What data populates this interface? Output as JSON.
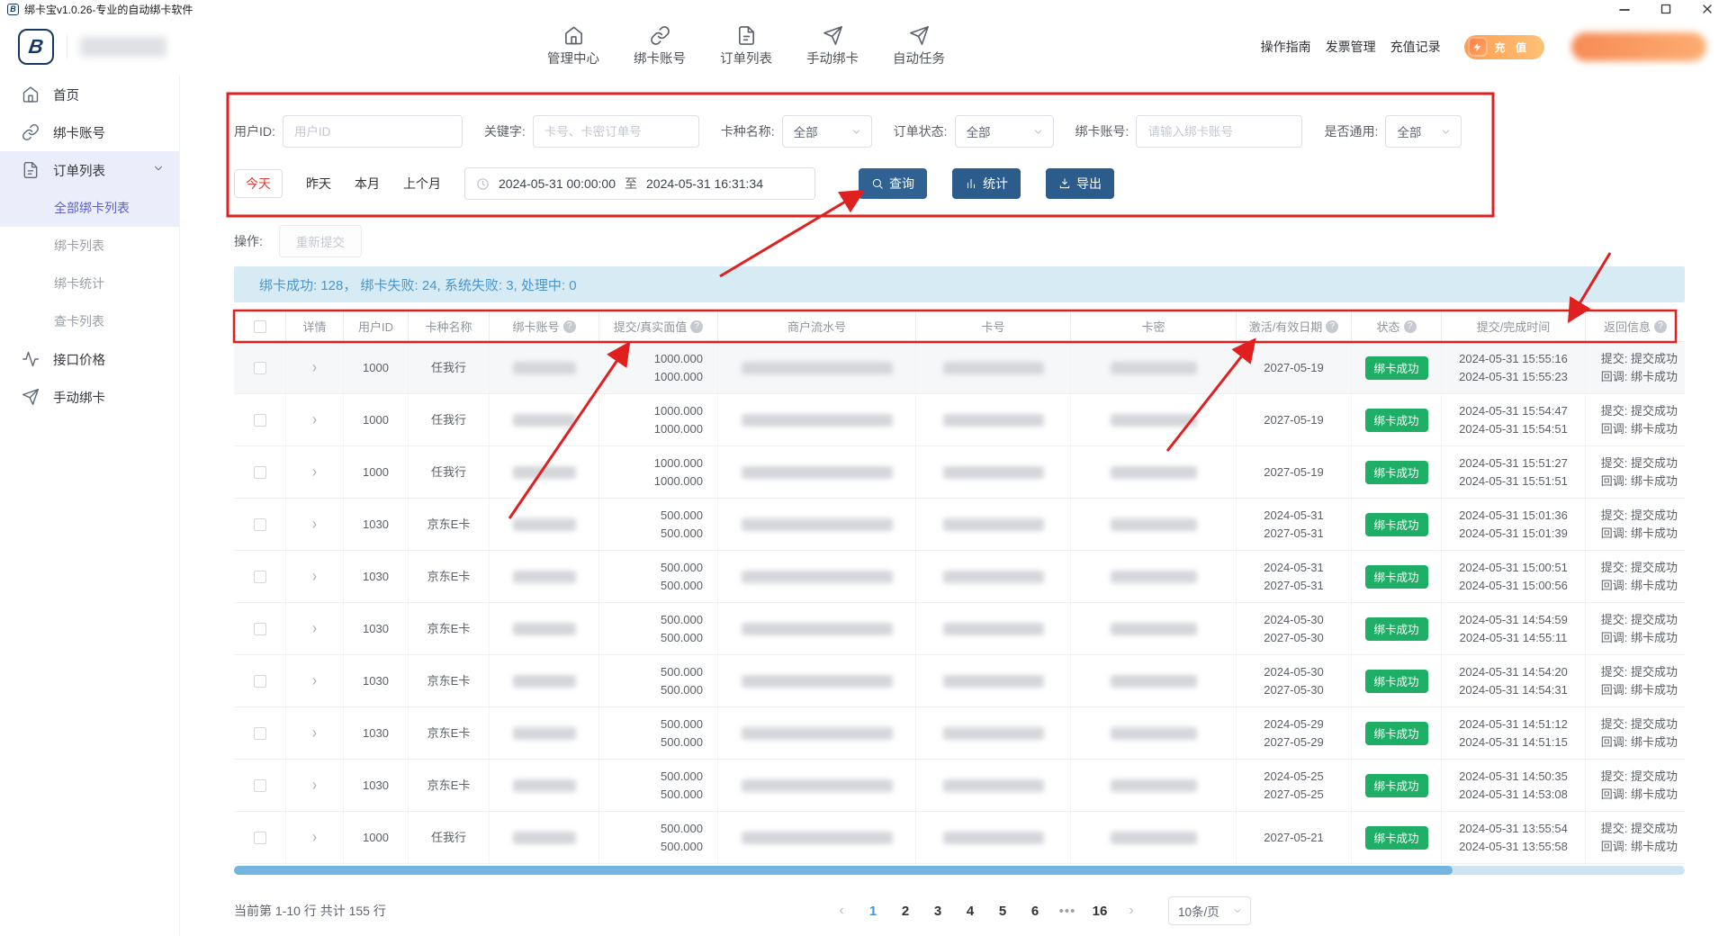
{
  "window": {
    "title": "绑卡宝v1.0.26-专业的自动绑卡软件"
  },
  "header": {
    "nav": [
      {
        "label": "管理中心"
      },
      {
        "label": "绑卡账号"
      },
      {
        "label": "订单列表"
      },
      {
        "label": "手动绑卡"
      },
      {
        "label": "自动任务"
      }
    ],
    "links": [
      {
        "label": "操作指南"
      },
      {
        "label": "发票管理"
      },
      {
        "label": "充值记录"
      }
    ],
    "recharge": {
      "label": "充 值"
    }
  },
  "sidebar": {
    "items": [
      {
        "label": "首页"
      },
      {
        "label": "绑卡账号"
      },
      {
        "label": "订单列表"
      },
      {
        "label": "接口价格"
      },
      {
        "label": "手动绑卡"
      }
    ],
    "submenu": [
      {
        "label": "全部绑卡列表",
        "active": true
      },
      {
        "label": "绑卡列表"
      },
      {
        "label": "绑卡统计"
      },
      {
        "label": "查卡列表"
      }
    ]
  },
  "filters": {
    "user_id": {
      "label": "用户ID:",
      "placeholder": "用户ID"
    },
    "keyword": {
      "label": "关键字:",
      "placeholder": "卡号、卡密订单号"
    },
    "card_type": {
      "label": "卡种名称:",
      "value": "全部"
    },
    "order_status": {
      "label": "订单状态:",
      "value": "全部"
    },
    "bind_account": {
      "label": "绑卡账号:",
      "placeholder": "请输入绑卡账号"
    },
    "universal": {
      "label": "是否通用:",
      "value": "全部"
    },
    "quick": [
      {
        "label": "今天"
      },
      {
        "label": "昨天"
      },
      {
        "label": "本月"
      },
      {
        "label": "上个月"
      }
    ],
    "date_start": "2024-05-31 00:00:00",
    "date_to": "至",
    "date_end": "2024-05-31 16:31:34",
    "query": "查询",
    "stats": "统计",
    "export": "导出"
  },
  "operation": {
    "label": "操作:",
    "resubmit": "重新提交"
  },
  "summary": {
    "text": "绑卡成功: 128，  绑卡失败: 24,  系统失败: 3,  处理中: 0"
  },
  "table": {
    "columns": [
      {
        "label": ""
      },
      {
        "label": "详情"
      },
      {
        "label": "用户ID"
      },
      {
        "label": "卡种名称"
      },
      {
        "label": "绑卡账号",
        "help": true
      },
      {
        "label": "提交/真实面值",
        "help": true
      },
      {
        "label": "商户流水号"
      },
      {
        "label": "卡号"
      },
      {
        "label": "卡密"
      },
      {
        "label": "激活/有效日期",
        "help": true
      },
      {
        "label": "状态",
        "help": true
      },
      {
        "label": "提交/完成时间"
      },
      {
        "label": "返回信息",
        "help": true
      }
    ],
    "rows": [
      {
        "user_id": "1000",
        "card_type": "任我行",
        "face": [
          "1000.000",
          "1000.000"
        ],
        "dates": [
          "2027-05-19"
        ],
        "status": "绑卡成功",
        "times": [
          "2024-05-31 15:55:16",
          "2024-05-31 15:55:23"
        ],
        "result": [
          "提交: 提交成功",
          "回调: 绑卡成功"
        ]
      },
      {
        "user_id": "1000",
        "card_type": "任我行",
        "face": [
          "1000.000",
          "1000.000"
        ],
        "dates": [
          "2027-05-19"
        ],
        "status": "绑卡成功",
        "times": [
          "2024-05-31 15:54:47",
          "2024-05-31 15:54:51"
        ],
        "result": [
          "提交: 提交成功",
          "回调: 绑卡成功"
        ]
      },
      {
        "user_id": "1000",
        "card_type": "任我行",
        "face": [
          "1000.000",
          "1000.000"
        ],
        "dates": [
          "2027-05-19"
        ],
        "status": "绑卡成功",
        "times": [
          "2024-05-31 15:51:27",
          "2024-05-31 15:51:51"
        ],
        "result": [
          "提交: 提交成功",
          "回调: 绑卡成功"
        ]
      },
      {
        "user_id": "1030",
        "card_type": "京东E卡",
        "face": [
          "500.000",
          "500.000"
        ],
        "dates": [
          "2024-05-31",
          "2027-05-31"
        ],
        "status": "绑卡成功",
        "times": [
          "2024-05-31 15:01:36",
          "2024-05-31 15:01:39"
        ],
        "result": [
          "提交: 提交成功",
          "回调: 绑卡成功"
        ]
      },
      {
        "user_id": "1030",
        "card_type": "京东E卡",
        "face": [
          "500.000",
          "500.000"
        ],
        "dates": [
          "2024-05-31",
          "2027-05-31"
        ],
        "status": "绑卡成功",
        "times": [
          "2024-05-31 15:00:51",
          "2024-05-31 15:00:56"
        ],
        "result": [
          "提交: 提交成功",
          "回调: 绑卡成功"
        ]
      },
      {
        "user_id": "1030",
        "card_type": "京东E卡",
        "face": [
          "500.000",
          "500.000"
        ],
        "dates": [
          "2024-05-30",
          "2027-05-30"
        ],
        "status": "绑卡成功",
        "times": [
          "2024-05-31 14:54:59",
          "2024-05-31 14:55:11"
        ],
        "result": [
          "提交: 提交成功",
          "回调: 绑卡成功"
        ]
      },
      {
        "user_id": "1030",
        "card_type": "京东E卡",
        "face": [
          "500.000",
          "500.000"
        ],
        "dates": [
          "2024-05-30",
          "2027-05-30"
        ],
        "status": "绑卡成功",
        "times": [
          "2024-05-31 14:54:20",
          "2024-05-31 14:54:31"
        ],
        "result": [
          "提交: 提交成功",
          "回调: 绑卡成功"
        ]
      },
      {
        "user_id": "1030",
        "card_type": "京东E卡",
        "face": [
          "500.000",
          "500.000"
        ],
        "dates": [
          "2024-05-29",
          "2027-05-29"
        ],
        "status": "绑卡成功",
        "times": [
          "2024-05-31 14:51:12",
          "2024-05-31 14:51:15"
        ],
        "result": [
          "提交: 提交成功",
          "回调: 绑卡成功"
        ]
      },
      {
        "user_id": "1030",
        "card_type": "京东E卡",
        "face": [
          "500.000",
          "500.000"
        ],
        "dates": [
          "2024-05-25",
          "2027-05-25"
        ],
        "status": "绑卡成功",
        "times": [
          "2024-05-31 14:50:35",
          "2024-05-31 14:53:08"
        ],
        "result": [
          "提交: 提交成功",
          "回调: 绑卡成功"
        ]
      },
      {
        "user_id": "1000",
        "card_type": "任我行",
        "face": [
          "500.000",
          "500.000"
        ],
        "dates": [
          "2027-05-21"
        ],
        "status": "绑卡成功",
        "times": [
          "2024-05-31 13:55:54",
          "2024-05-31 13:55:58"
        ],
        "result": [
          "提交: 提交成功",
          "回调: 绑卡成功"
        ]
      }
    ]
  },
  "pagination": {
    "info": "当前第 1-10 行  共计 155 行",
    "prev": "‹",
    "next": "›",
    "pages": [
      "1",
      "2",
      "3",
      "4",
      "5",
      "6",
      "•••",
      "16"
    ],
    "active": "1",
    "page_size": "10条/页"
  },
  "colors": {
    "annotation_red": "#e01f1f",
    "success_green": "#1fae66",
    "button_blue": "#2f6293",
    "summary_bg": "#d7ebf5",
    "active_purple": "#5a5fd0"
  }
}
